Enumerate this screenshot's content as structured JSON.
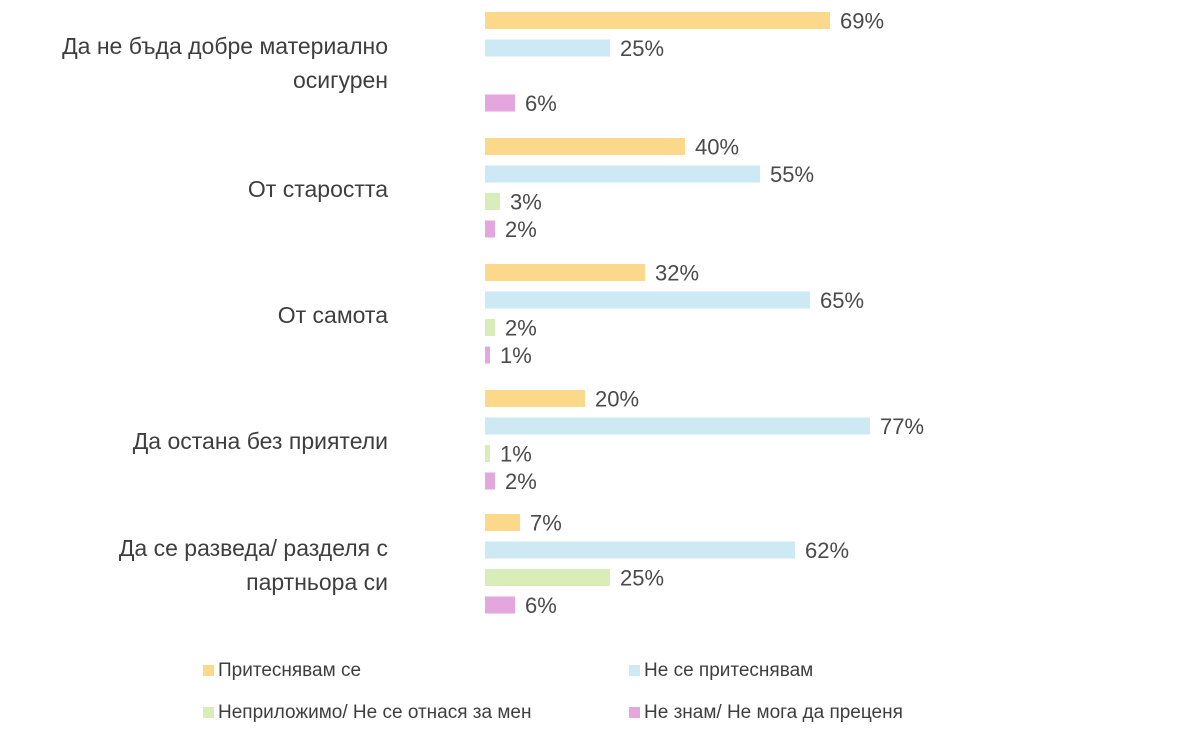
{
  "chart_data": {
    "type": "bar",
    "orientation": "horizontal",
    "categories": [
      [
        "Да не бъда добре материално",
        "осигурен"
      ],
      [
        "От старостта"
      ],
      [
        "От самота"
      ],
      [
        "Да остана без приятели"
      ],
      [
        "Да се разведа/ разделя с",
        "партньора си"
      ]
    ],
    "series": [
      {
        "name": "Притеснявам се",
        "color": "#fcd88a",
        "values": [
          69,
          40,
          32,
          20,
          7
        ]
      },
      {
        "name": "Не се притеснявам",
        "color": "#cde9f4",
        "values": [
          25,
          55,
          65,
          77,
          62
        ]
      },
      {
        "name": "Неприложимо/ Не се отнася за мен",
        "color": "#d9edb9",
        "values": [
          null,
          3,
          2,
          1,
          25
        ]
      },
      {
        "name": "Не знам/ Не мога да преценя",
        "color": "#e3a6dd",
        "values": [
          6,
          2,
          1,
          2,
          6
        ]
      }
    ],
    "value_suffix": "%",
    "grid": false,
    "legend_position": "bottom"
  }
}
